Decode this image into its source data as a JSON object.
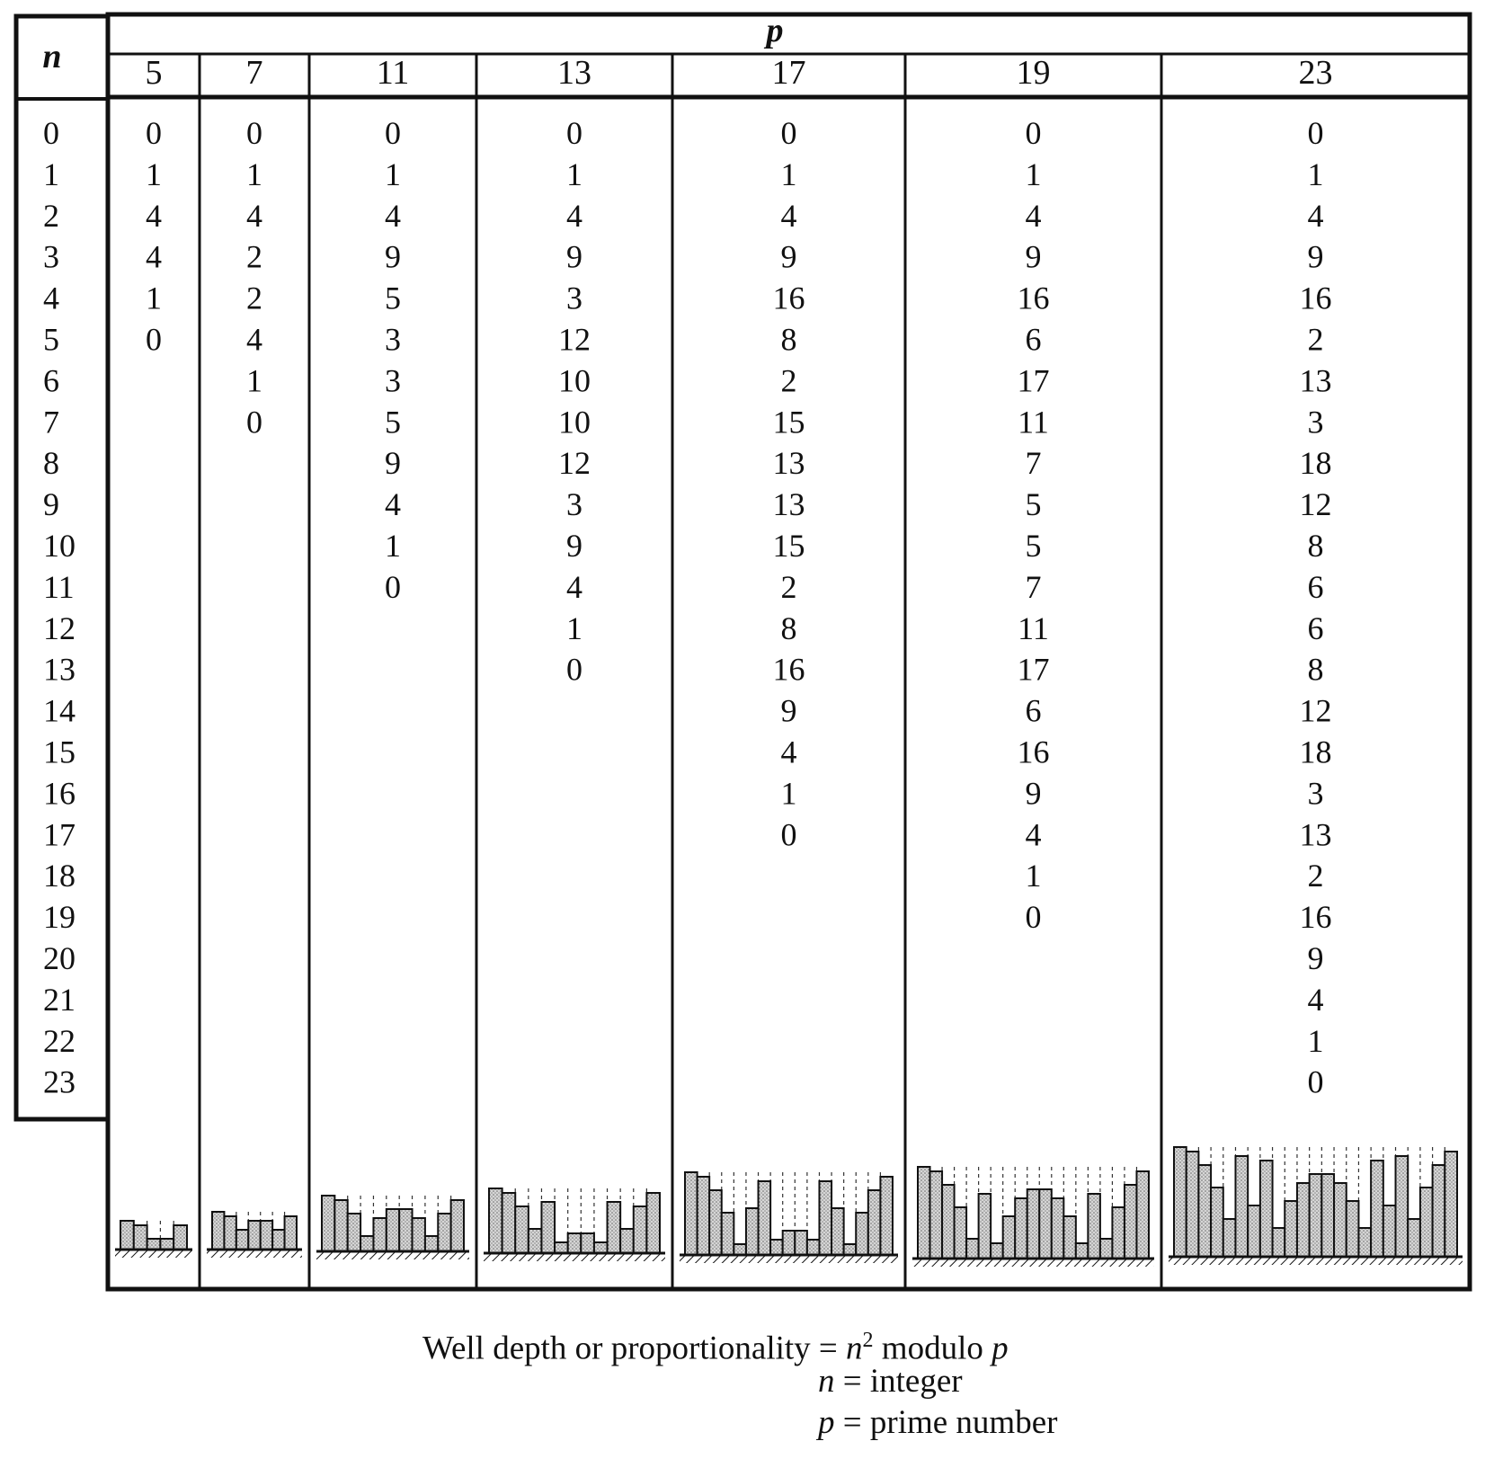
{
  "table": {
    "n_header": "n",
    "p_header": "p",
    "n_values": [
      "0",
      "1",
      "2",
      "3",
      "4",
      "5",
      "6",
      "7",
      "8",
      "9",
      "10",
      "11",
      "12",
      "13",
      "14",
      "15",
      "16",
      "17",
      "18",
      "19",
      "20",
      "21",
      "22",
      "23"
    ],
    "columns": [
      {
        "p": "5",
        "values": [
          0,
          1,
          4,
          4,
          1,
          0
        ]
      },
      {
        "p": "7",
        "values": [
          0,
          1,
          4,
          2,
          2,
          4,
          1,
          0
        ]
      },
      {
        "p": "11",
        "values": [
          0,
          1,
          4,
          9,
          5,
          3,
          3,
          5,
          9,
          4,
          1,
          0
        ]
      },
      {
        "p": "13",
        "values": [
          0,
          1,
          4,
          9,
          3,
          12,
          10,
          10,
          12,
          3,
          9,
          4,
          1,
          0
        ]
      },
      {
        "p": "17",
        "values": [
          0,
          1,
          4,
          9,
          16,
          8,
          2,
          15,
          13,
          13,
          15,
          2,
          8,
          16,
          9,
          4,
          1,
          0
        ]
      },
      {
        "p": "19",
        "values": [
          0,
          1,
          4,
          9,
          16,
          6,
          17,
          11,
          7,
          5,
          5,
          7,
          11,
          17,
          6,
          16,
          9,
          4,
          1,
          0
        ]
      },
      {
        "p": "23",
        "values": [
          0,
          1,
          4,
          9,
          16,
          2,
          13,
          3,
          18,
          12,
          8,
          6,
          6,
          8,
          12,
          18,
          3,
          13,
          2,
          16,
          9,
          4,
          1,
          0
        ]
      }
    ]
  },
  "caption": {
    "line1_pre": "Well depth or proportionality = ",
    "line1_var": "n",
    "line1_sup": "2",
    "line1_mid": " modulo ",
    "line1_var2": "p",
    "line2_var": "n",
    "line2_rest": " = integer",
    "line3_var": "p",
    "line3_rest": " = prime number"
  }
}
